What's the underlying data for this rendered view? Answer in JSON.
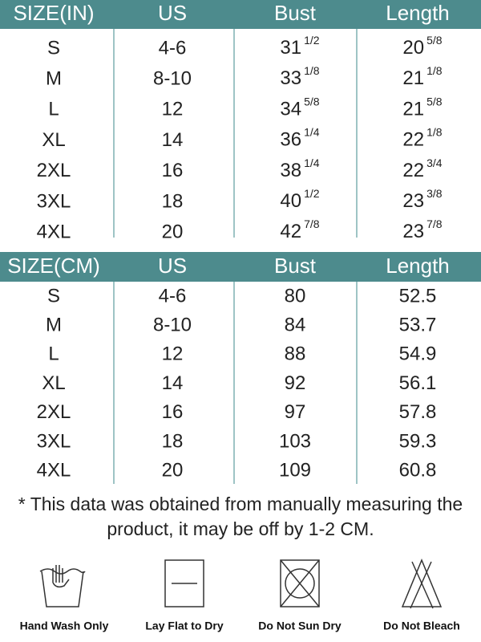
{
  "table_in": {
    "columns": [
      "SIZE(IN)",
      "US",
      "Bust",
      "Length"
    ],
    "rows": [
      [
        "S",
        "4-6",
        {
          "whole": "31",
          "fraction": "1/2"
        },
        {
          "whole": "20",
          "fraction": "5/8"
        }
      ],
      [
        "M",
        "8-10",
        {
          "whole": "33",
          "fraction": "1/8"
        },
        {
          "whole": "21",
          "fraction": "1/8"
        }
      ],
      [
        "L",
        "12",
        {
          "whole": "34",
          "fraction": "5/8"
        },
        {
          "whole": "21",
          "fraction": "5/8"
        }
      ],
      [
        "XL",
        "14",
        {
          "whole": "36",
          "fraction": "1/4"
        },
        {
          "whole": "22",
          "fraction": "1/8"
        }
      ],
      [
        "2XL",
        "16",
        {
          "whole": "38",
          "fraction": "1/4"
        },
        {
          "whole": "22",
          "fraction": "3/4"
        }
      ],
      [
        "3XL",
        "18",
        {
          "whole": "40",
          "fraction": "1/2"
        },
        {
          "whole": "23",
          "fraction": "3/8"
        }
      ],
      [
        "4XL",
        "20",
        {
          "whole": "42",
          "fraction": "7/8"
        },
        {
          "whole": "23",
          "fraction": "7/8"
        }
      ]
    ]
  },
  "table_cm": {
    "columns": [
      "SIZE(CM)",
      "US",
      "Bust",
      "Length"
    ],
    "rows": [
      [
        "S",
        "4-6",
        "80",
        "52.5"
      ],
      [
        "M",
        "8-10",
        "84",
        "53.7"
      ],
      [
        "L",
        "12",
        "88",
        "54.9"
      ],
      [
        "XL",
        "14",
        "92",
        "56.1"
      ],
      [
        "2XL",
        "16",
        "97",
        "57.8"
      ],
      [
        "3XL",
        "18",
        "103",
        "59.3"
      ],
      [
        "4XL",
        "20",
        "109",
        "60.8"
      ]
    ]
  },
  "note": [
    "* This data was obtained from manually measuring the",
    "product, it may be off by 1-2 CM."
  ],
  "care": [
    "Hand Wash Only",
    "Lay Flat to Dry",
    "Do Not Sun Dry",
    "Do Not Bleach"
  ]
}
